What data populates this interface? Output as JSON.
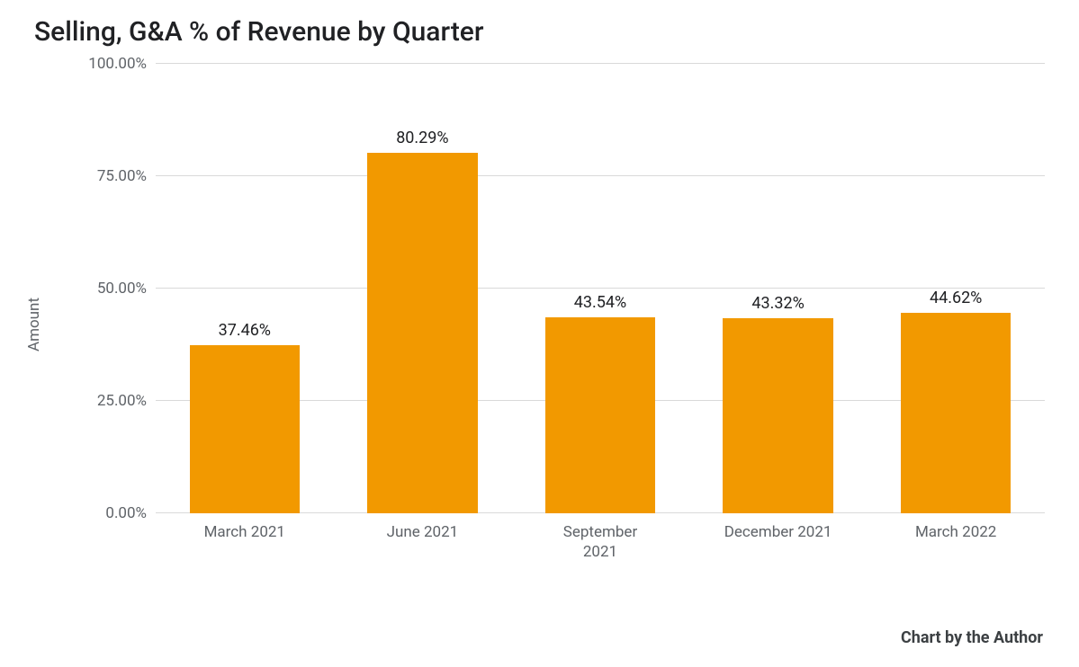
{
  "chart": {
    "type": "bar",
    "title": "Selling, G&A % of Revenue by Quarter",
    "title_fontsize": 30,
    "title_color": "#202124",
    "ylabel": "Amount",
    "ylabel_fontsize": 17,
    "categories": [
      "March 2021",
      "June 2021",
      "September\n2021",
      "December 2021",
      "March 2022"
    ],
    "values": [
      37.46,
      80.29,
      43.54,
      43.32,
      44.62
    ],
    "value_labels": [
      "37.46%",
      "80.29%",
      "43.54%",
      "43.32%",
      "44.62%"
    ],
    "bar_color": "#f29900",
    "ylim": [
      0,
      100
    ],
    "yticks": [
      0,
      25,
      50,
      75,
      100
    ],
    "ytick_labels": [
      "0.00%",
      "25.00%",
      "50.00%",
      "75.00%",
      "100.00%"
    ],
    "grid_color": "#d9d9d9",
    "background_color": "#ffffff",
    "tick_font_color": "#5f6368",
    "tick_fontsize": 17,
    "value_label_fontsize": 18,
    "value_label_color": "#202124",
    "bar_width_ratio": 0.62
  },
  "credit": "Chart by the Author",
  "credit_fontsize": 18,
  "credit_color": "#3c4043"
}
